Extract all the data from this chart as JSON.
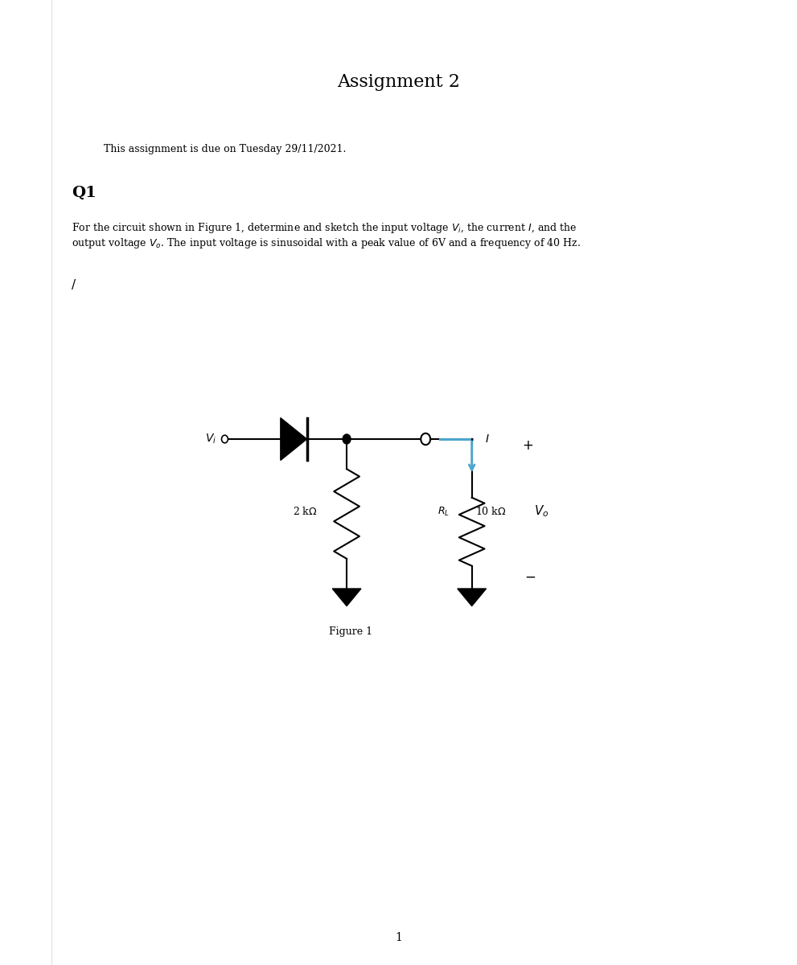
{
  "title": "Assignment 2",
  "due_text": "This assignment is due on Tuesday 29/11/2021.",
  "q1_label": "Q1",
  "figure_label": "Figure 1",
  "page_number": "1",
  "bg_color": "#ffffff",
  "text_color": "#000000",
  "circuit_color": "#000000",
  "arrow_color": "#4da6cc"
}
